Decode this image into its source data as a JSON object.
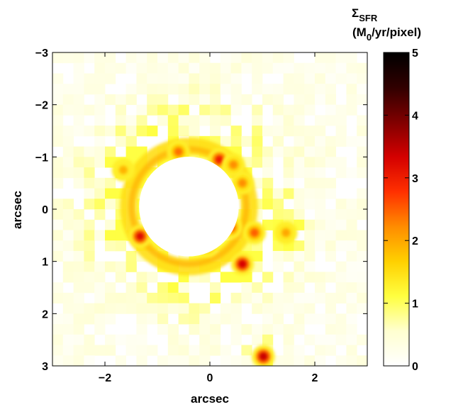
{
  "chart_data": {
    "type": "heatmap",
    "title": "",
    "xlabel": "arcsec",
    "ylabel": "arcsec",
    "xlim": [
      -3,
      3
    ],
    "ylim": [
      -3,
      3
    ],
    "y_reversed": true,
    "x_ticks": [
      {
        "value": -2,
        "label": "−2"
      },
      {
        "value": 0,
        "label": "0"
      },
      {
        "value": 2,
        "label": "2"
      }
    ],
    "y_ticks": [
      {
        "value": -3,
        "label": "−3"
      },
      {
        "value": -2,
        "label": "−2"
      },
      {
        "value": -1,
        "label": "−1"
      },
      {
        "value": 0,
        "label": "0"
      },
      {
        "value": 1,
        "label": "1"
      },
      {
        "value": 2,
        "label": "2"
      },
      {
        "value": 3,
        "label": "3"
      }
    ],
    "colorbar": {
      "title_line1": "Σ",
      "title_sub1": "SFR",
      "title_line2_pre": "(M",
      "title_sub2": "0",
      "title_line2_post": "/yr/pixel)",
      "range": [
        0,
        5
      ],
      "ticks": [
        "0",
        "1",
        "2",
        "3",
        "4",
        "5"
      ],
      "colormap": [
        "#ffffff",
        "#ffffd0",
        "#ffff40",
        "#ffd000",
        "#ff8c00",
        "#ff3000",
        "#d40000",
        "#800000",
        "#300000",
        "#000000"
      ]
    },
    "central_hole": {
      "x": -0.4,
      "y": -0.05,
      "radius": 0.95
    },
    "hotspots": [
      {
        "x": -1.33,
        "y": 0.52,
        "value": 3.2
      },
      {
        "x": -1.05,
        "y": -0.35,
        "value": 2.9
      },
      {
        "x": -0.6,
        "y": -1.1,
        "value": 2.4
      },
      {
        "x": 0.18,
        "y": -0.95,
        "value": 3.0
      },
      {
        "x": 0.62,
        "y": 1.05,
        "value": 3.3
      },
      {
        "x": 0.85,
        "y": 0.45,
        "value": 2.5
      },
      {
        "x": 0.4,
        "y": 0.35,
        "value": 2.6
      },
      {
        "x": 1.02,
        "y": 2.82,
        "value": 3.4
      },
      {
        "x": -0.05,
        "y": 0.7,
        "value": 2.3
      },
      {
        "x": -0.85,
        "y": 0.6,
        "value": 2.2
      },
      {
        "x": 0.62,
        "y": -0.5,
        "value": 2.2
      },
      {
        "x": 1.45,
        "y": 0.45,
        "value": 2.0
      },
      {
        "x": -1.65,
        "y": -0.75,
        "value": 1.9
      },
      {
        "x": 0.45,
        "y": -0.85,
        "value": 2.2
      }
    ]
  }
}
